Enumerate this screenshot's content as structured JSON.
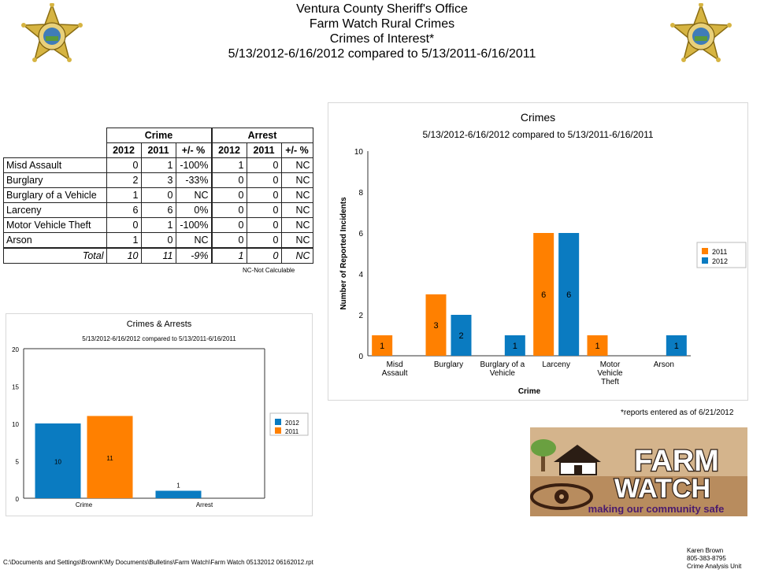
{
  "header": {
    "line1": "Ventura County Sheriff's Office",
    "line2": "Farm Watch Rural Crimes",
    "line3": "Crimes of Interest*",
    "line4": "5/13/2012-6/16/2012 compared to 5/13/2011-6/16/2011"
  },
  "badge_text": "SHERIFF VENTURA COUNTY",
  "table": {
    "group_headers": [
      "Crime",
      "Arrest"
    ],
    "sub_headers": [
      "2012",
      "2011",
      "+/- %",
      "2012",
      "2011",
      "+/- %"
    ],
    "rows": [
      {
        "label": "Misd  Assault",
        "values": [
          "0",
          "1",
          "-100%",
          "1",
          "0",
          "NC"
        ]
      },
      {
        "label": "Burglary",
        "values": [
          "2",
          "3",
          "-33%",
          "0",
          "0",
          "NC"
        ]
      },
      {
        "label": "Burglary of a Vehicle",
        "values": [
          "1",
          "0",
          "NC",
          "0",
          "0",
          "NC"
        ]
      },
      {
        "label": "Larceny",
        "values": [
          "6",
          "6",
          "0%",
          "0",
          "0",
          "NC"
        ]
      },
      {
        "label": "Motor Vehicle Theft",
        "values": [
          "0",
          "1",
          "-100%",
          "0",
          "0",
          "NC"
        ]
      },
      {
        "label": "Arson",
        "values": [
          "1",
          "0",
          "NC",
          "0",
          "0",
          "NC"
        ]
      }
    ],
    "total": {
      "label": "Total",
      "values": [
        "10",
        "11",
        "-9%",
        "1",
        "0",
        "NC"
      ]
    },
    "note": "NC-Not Calculable"
  },
  "reports_note": "*reports entered as of 6/21/2012",
  "logo": {
    "word1": "FARM",
    "word2": "WATCH",
    "tagline": "making our community safe"
  },
  "footer": {
    "path": "C:\\Documents and Settings\\BrownK\\My Documents\\Bulletins\\Farm Watch\\Farm Watch 05132012 06162012.rpt",
    "author": "Karen Brown",
    "phone": "805-383-8795",
    "unit": "Crime Analysis Unit"
  },
  "colors": {
    "orange": "#ff8000",
    "blue": "#0a7bc1"
  },
  "chart_data": [
    {
      "type": "bar",
      "title": "Crimes",
      "subtitle": "5/13/2012-6/16/2012 compared to 5/13/2011-6/16/2011",
      "xlabel": "Crime",
      "ylabel": "Number of Reported Incidents",
      "ylim": [
        0,
        10
      ],
      "yticks": [
        0,
        2,
        4,
        6,
        8,
        10
      ],
      "categories": [
        [
          "Misd",
          "Assault"
        ],
        [
          "Burglary"
        ],
        [
          "Burglary of a",
          "Vehicle"
        ],
        [
          "Larceny"
        ],
        [
          "Motor",
          "Vehicle",
          "Theft"
        ],
        [
          "Arson"
        ]
      ],
      "series": [
        {
          "name": "2011",
          "color": "#ff8000",
          "values": [
            1,
            3,
            0,
            6,
            1,
            0
          ]
        },
        {
          "name": "2012",
          "color": "#0a7bc1",
          "values": [
            0,
            2,
            1,
            6,
            0,
            1
          ]
        }
      ],
      "legend": "right",
      "grid": false
    },
    {
      "type": "bar",
      "title": "Crimes & Arrests",
      "subtitle": "5/13/2012-6/16/2012 compared to 5/13/2011-6/16/2011",
      "xlabel": "",
      "ylabel": "",
      "ylim": [
        0,
        20
      ],
      "yticks": [
        0,
        5,
        10,
        15,
        20
      ],
      "categories": [
        [
          "Crime"
        ],
        [
          "Arrest"
        ]
      ],
      "series": [
        {
          "name": "2012",
          "color": "#0a7bc1",
          "values": [
            10,
            1
          ]
        },
        {
          "name": "2011",
          "color": "#ff8000",
          "values": [
            11,
            0
          ]
        }
      ],
      "legend": "right",
      "grid": false
    }
  ]
}
